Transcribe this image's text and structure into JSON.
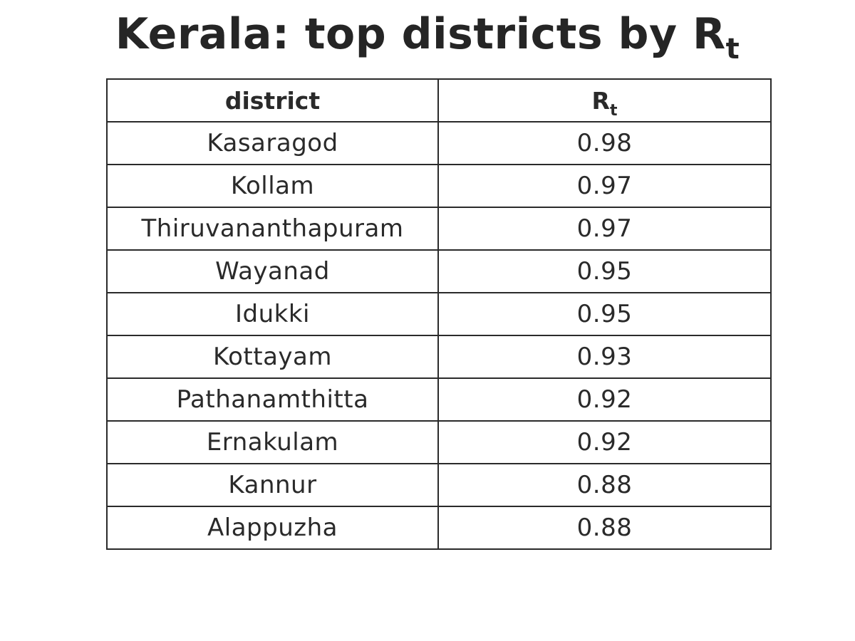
{
  "chart_data": {
    "type": "table",
    "title": "Kerala: top districts by R",
    "title_subscript": "t",
    "columns": [
      "district",
      "R"
    ],
    "column_subscripts": [
      "",
      "t"
    ],
    "rows": [
      {
        "district": "Kasaragod",
        "rt": "0.98"
      },
      {
        "district": "Kollam",
        "rt": "0.97"
      },
      {
        "district": "Thiruvananthapuram",
        "rt": "0.97"
      },
      {
        "district": "Wayanad",
        "rt": "0.95"
      },
      {
        "district": "Idukki",
        "rt": "0.95"
      },
      {
        "district": "Kottayam",
        "rt": "0.93"
      },
      {
        "district": "Pathanamthitta",
        "rt": "0.92"
      },
      {
        "district": "Ernakulam",
        "rt": "0.92"
      },
      {
        "district": "Kannur",
        "rt": "0.88"
      },
      {
        "district": "Alappuzha",
        "rt": "0.88"
      }
    ]
  },
  "colors": {
    "text": "#252525",
    "border": "#2a2a2a",
    "background": "#ffffff"
  }
}
